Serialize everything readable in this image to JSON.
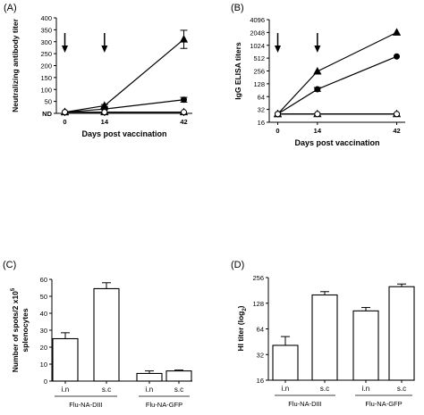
{
  "chart_data": [
    {
      "panel_label": "(A)",
      "type": "line",
      "xlabel": "Days post vaccination",
      "ylabel": "Neutralizing antibody titer",
      "x": [
        0,
        14,
        42
      ],
      "x_tick_labels": [
        "0",
        "14",
        "42"
      ],
      "ylim": [
        0,
        400
      ],
      "y_ticks": [
        0,
        50,
        100,
        150,
        200,
        250,
        300,
        350,
        400
      ],
      "y_tick_labels": [
        "ND",
        "50",
        "100",
        "150",
        "200",
        "250",
        "300",
        "350",
        "400"
      ],
      "grid": false,
      "arrows_at_x": [
        0,
        14
      ],
      "series": [
        {
          "marker": "triangle",
          "values": [
            5,
            32,
            310
          ],
          "errors": [
            0,
            5,
            38
          ]
        },
        {
          "marker": "circle",
          "values": [
            5,
            18,
            57
          ],
          "errors": [
            0,
            3,
            10
          ]
        },
        {
          "marker": "open-triangle",
          "values": [
            5,
            5,
            5
          ],
          "errors": [
            0,
            0,
            0
          ]
        },
        {
          "marker": "open-circle",
          "values": [
            5,
            5,
            5
          ],
          "errors": [
            0,
            0,
            0
          ]
        }
      ]
    },
    {
      "panel_label": "(B)",
      "type": "line",
      "scale": "log2",
      "xlabel": "Days post vaccination",
      "ylabel": "IgG ELISA titers",
      "x": [
        0,
        14,
        42
      ],
      "x_tick_labels": [
        "0",
        "14",
        "42"
      ],
      "ylim": [
        16,
        4096
      ],
      "y_ticks": [
        16,
        32,
        64,
        128,
        256,
        512,
        1024,
        2048,
        4096
      ],
      "y_tick_labels": [
        "16",
        "32",
        "64",
        "128",
        "256",
        "512",
        "1024",
        "2048",
        "4096"
      ],
      "grid": false,
      "arrows_at_x": [
        0,
        14
      ],
      "series": [
        {
          "marker": "triangle",
          "values": [
            25,
            250,
            2048
          ],
          "errors": [
            0,
            0,
            0
          ]
        },
        {
          "marker": "circle",
          "values": [
            25,
            95,
            560
          ],
          "errors": [
            0,
            10,
            0
          ]
        },
        {
          "marker": "open-triangle",
          "values": [
            25,
            25,
            25
          ],
          "errors": [
            0,
            0,
            0
          ]
        },
        {
          "marker": "open-circle",
          "values": [
            25,
            25,
            25
          ],
          "errors": [
            0,
            0,
            0
          ]
        }
      ]
    },
    {
      "panel_label": "(C)",
      "type": "bar",
      "ylabel_line1": "Number of spots/2 x10",
      "ylabel_exp": "5",
      "ylabel_line2": "splenocytes",
      "ylim": [
        0,
        60
      ],
      "y_ticks": [
        0,
        10,
        20,
        30,
        40,
        50,
        60
      ],
      "y_tick_labels": [
        "0",
        "10",
        "20",
        "30",
        "40",
        "50",
        "60"
      ],
      "categories": [
        "i.n",
        "s.c",
        "i.n",
        "s.c"
      ],
      "groups": [
        "Flu-NA-DIII",
        "Flu-NA-GFP"
      ],
      "values": [
        25,
        54.5,
        4.5,
        6
      ],
      "errors": [
        3.5,
        3.5,
        1.5,
        0.5
      ]
    },
    {
      "panel_label": "(D)",
      "type": "bar",
      "scale": "log2",
      "ylabel": "HI titer (log",
      "ylabel_sub": "2",
      "ylabel_end": ")",
      "ylim": [
        16,
        256
      ],
      "y_ticks": [
        16,
        32,
        64,
        128,
        256
      ],
      "y_tick_labels": [
        "16",
        "32",
        "64",
        "128",
        "256"
      ],
      "categories": [
        "i.n",
        "s.c",
        "i.n",
        "s.c"
      ],
      "groups": [
        "Flu-NA-DIII",
        "Flu-NA-GFP"
      ],
      "values": [
        41,
        160,
        104,
        200
      ],
      "errors": [
        11,
        15,
        10,
        15
      ]
    }
  ]
}
